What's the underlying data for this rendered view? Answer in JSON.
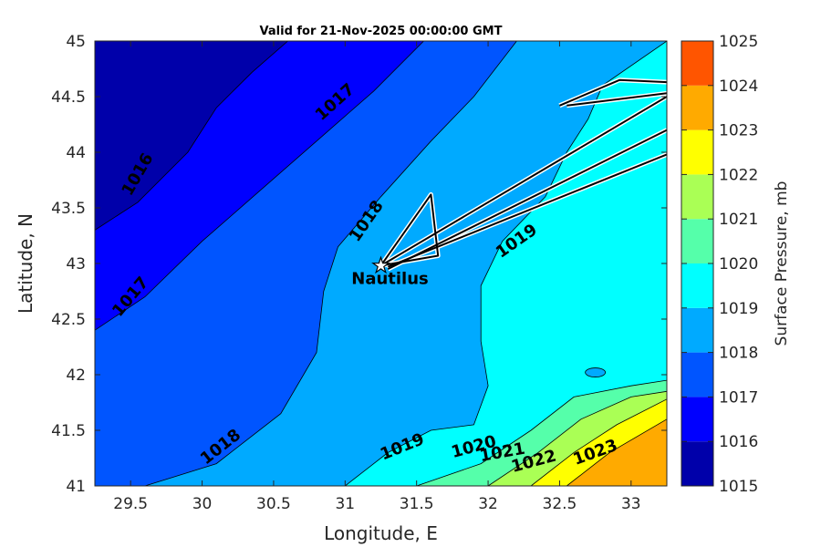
{
  "chart_data": {
    "type": "contour",
    "title": "Valid for 21-Nov-2025 00:00:00 GMT",
    "xlabel": "Longitude, E",
    "ylabel": "Latitude, N",
    "colorbar_label": "Surface Pressure, mb",
    "xlim": [
      29.25,
      33.25
    ],
    "ylim": [
      41,
      45
    ],
    "xticks": [
      29.5,
      30,
      30.5,
      31,
      31.5,
      32,
      32.5,
      33
    ],
    "xtick_labels": [
      "29.5",
      "30",
      "30.5",
      "31",
      "31.5",
      "32",
      "32.5",
      "33"
    ],
    "yticks": [
      41,
      41.5,
      42,
      42.5,
      43,
      43.5,
      44,
      44.5,
      45
    ],
    "ytick_labels": [
      "41",
      "41.5",
      "42",
      "42.5",
      "43",
      "43.5",
      "44",
      "44.5",
      "45"
    ],
    "levels": [
      1015,
      1016,
      1017,
      1018,
      1019,
      1020,
      1021,
      1022,
      1023,
      1024,
      1025
    ],
    "level_labels": [
      "1015",
      "1016",
      "1017",
      "1018",
      "1019",
      "1020",
      "1021",
      "1022",
      "1023",
      "1024",
      "1025"
    ],
    "colors": [
      "#0000aa",
      "#0000ff",
      "#0055ff",
      "#00aaff",
      "#00ffff",
      "#55ffaa",
      "#aaff55",
      "#ffff00",
      "#ffaa00",
      "#ff5500",
      "#ff0000"
    ],
    "contour_lines": [
      {
        "level": 1016,
        "points": [
          [
            29.25,
            43.3
          ],
          [
            29.55,
            43.55
          ],
          [
            29.9,
            44.0
          ],
          [
            30.1,
            44.4
          ],
          [
            30.35,
            44.72
          ],
          [
            30.6,
            45.0
          ]
        ]
      },
      {
        "level": 1017,
        "points": [
          [
            29.25,
            42.4
          ],
          [
            29.6,
            42.7
          ],
          [
            30.0,
            43.2
          ],
          [
            30.4,
            43.65
          ],
          [
            30.8,
            44.1
          ],
          [
            31.2,
            44.55
          ],
          [
            31.55,
            45.0
          ]
        ]
      },
      {
        "level": 1018,
        "points": [
          [
            29.6,
            41.0
          ],
          [
            30.1,
            41.2
          ],
          [
            30.55,
            41.65
          ],
          [
            30.8,
            42.2
          ],
          [
            30.85,
            42.75
          ],
          [
            30.95,
            43.15
          ],
          [
            31.25,
            43.6
          ],
          [
            31.6,
            44.1
          ],
          [
            31.9,
            44.5
          ],
          [
            32.2,
            45.0
          ]
        ]
      },
      {
        "level": 1019,
        "points": [
          [
            31.0,
            41.0
          ],
          [
            31.3,
            41.3
          ],
          [
            31.6,
            41.5
          ],
          [
            31.9,
            41.55
          ],
          [
            32.0,
            41.9
          ],
          [
            31.95,
            42.3
          ],
          [
            31.95,
            42.8
          ],
          [
            32.1,
            43.2
          ],
          [
            32.4,
            43.6
          ],
          [
            32.55,
            44.0
          ],
          [
            32.7,
            44.3
          ],
          [
            32.8,
            44.6
          ],
          [
            33.25,
            45.0
          ]
        ]
      },
      {
        "level": 1020,
        "points": [
          [
            31.5,
            41.0
          ],
          [
            31.95,
            41.2
          ],
          [
            32.3,
            41.5
          ],
          [
            32.6,
            41.8
          ],
          [
            33.0,
            41.9
          ],
          [
            33.25,
            41.95
          ]
        ]
      },
      {
        "level": 1021,
        "points": [
          [
            32.0,
            41.0
          ],
          [
            32.35,
            41.3
          ],
          [
            32.65,
            41.6
          ],
          [
            33.0,
            41.8
          ],
          [
            33.25,
            41.85
          ]
        ]
      },
      {
        "level": 1022,
        "points": [
          [
            32.3,
            41.0
          ],
          [
            32.6,
            41.3
          ],
          [
            32.9,
            41.55
          ],
          [
            33.25,
            41.78
          ]
        ]
      },
      {
        "level": 1023,
        "points": [
          [
            32.55,
            41.0
          ],
          [
            32.85,
            41.3
          ],
          [
            33.25,
            41.6
          ]
        ]
      }
    ],
    "contour_labels": [
      {
        "text": "1016",
        "lon": 29.55,
        "lat": 43.8,
        "angle": -60
      },
      {
        "text": "1017",
        "lon": 30.93,
        "lat": 44.45,
        "angle": -42
      },
      {
        "text": "1017",
        "lon": 29.5,
        "lat": 42.7,
        "angle": -50
      },
      {
        "text": "1018",
        "lon": 31.15,
        "lat": 43.38,
        "angle": -55
      },
      {
        "text": "1018",
        "lon": 30.13,
        "lat": 41.35,
        "angle": -38
      },
      {
        "text": "1019",
        "lon": 32.2,
        "lat": 43.2,
        "angle": -35
      },
      {
        "text": "1019",
        "lon": 31.4,
        "lat": 41.35,
        "angle": -22
      },
      {
        "text": "1020",
        "lon": 31.9,
        "lat": 41.35,
        "angle": -15
      },
      {
        "text": "1021",
        "lon": 32.1,
        "lat": 41.3,
        "angle": -10
      },
      {
        "text": "1022",
        "lon": 32.32,
        "lat": 41.22,
        "angle": -15
      },
      {
        "text": "1023",
        "lon": 32.75,
        "lat": 41.3,
        "angle": -20
      }
    ],
    "station": {
      "name": "Nautilus",
      "lon": 31.25,
      "lat": 42.98
    },
    "track": [
      [
        [
          31.25,
          42.98
        ],
        [
          31.6,
          43.62
        ],
        [
          31.65,
          43.07
        ],
        [
          31.25,
          42.98
        ]
      ],
      [
        [
          31.25,
          42.98
        ],
        [
          33.25,
          44.5
        ]
      ],
      [
        [
          31.3,
          42.95
        ],
        [
          33.25,
          44.2
        ]
      ],
      [
        [
          31.3,
          42.97
        ],
        [
          33.25,
          43.98
        ]
      ],
      [
        [
          32.5,
          44.42
        ],
        [
          32.92,
          44.65
        ],
        [
          33.25,
          44.63
        ]
      ],
      [
        [
          32.55,
          44.42
        ],
        [
          33.25,
          44.53
        ]
      ]
    ]
  }
}
